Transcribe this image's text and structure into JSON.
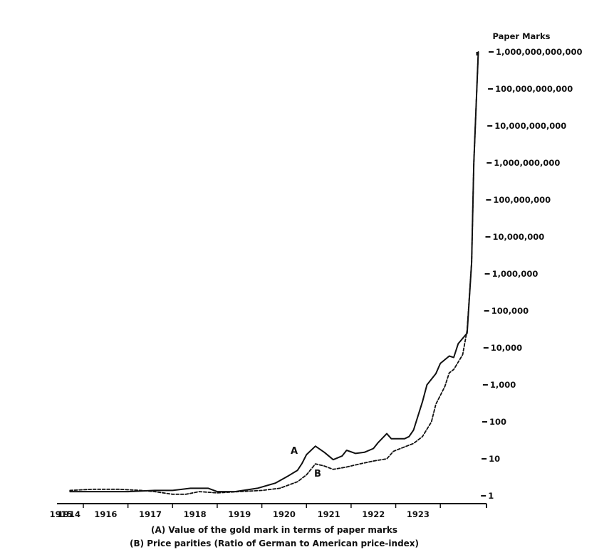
{
  "chart_data": {
    "type": "line",
    "title": "",
    "xlabel": "",
    "ylabel": "Paper Marks",
    "yscale": "log",
    "ylim": [
      1,
      1000000000000
    ],
    "xlim": [
      1914.7,
      1924.0
    ],
    "grid": false,
    "legend_position": "caption below chart",
    "x_tick_labels": [
      "1914",
      "1915",
      "1916",
      "1917",
      "1918",
      "1919",
      "1920",
      "1921",
      "1922",
      "1923"
    ],
    "y_tick_values": [
      1,
      10,
      100,
      1000,
      10000,
      100000,
      1000000,
      10000000,
      100000000,
      1000000000,
      10000000000,
      100000000000,
      1000000000000
    ],
    "y_tick_labels": [
      "1",
      "10",
      "100",
      "1,000",
      "10,000",
      "100,000",
      "1,000,000",
      "10,000,000",
      "100,000,000",
      "1,000,000,000",
      "10,000,000,000",
      "100,000,000,000",
      "1,000,000,000,000"
    ],
    "annotations": [
      {
        "text": "A",
        "x": 1919.6,
        "y": 20
      },
      {
        "text": "B",
        "x": 1919.9,
        "y": 5
      }
    ],
    "series": [
      {
        "name": "A",
        "label": "(A) Value of the gold mark in terms of paper marks",
        "style": "solid",
        "x": [
          1914.7,
          1915.2,
          1916.0,
          1916.6,
          1917.0,
          1917.4,
          1917.8,
          1918.0,
          1918.4,
          1918.9,
          1919.3,
          1919.6,
          1919.8,
          1919.9,
          1920.0,
          1920.2,
          1920.4,
          1920.6,
          1920.8,
          1920.9,
          1921.1,
          1921.3,
          1921.5,
          1921.6,
          1921.8,
          1921.9,
          1922.2,
          1922.3,
          1922.4,
          1922.6,
          1922.7,
          1922.9,
          1923.0,
          1923.2,
          1923.3,
          1923.4,
          1923.6,
          1923.7,
          1923.75,
          1923.85
        ],
        "values": [
          1.3,
          1.3,
          1.3,
          1.4,
          1.4,
          1.6,
          1.6,
          1.3,
          1.3,
          1.6,
          2.2,
          3.5,
          4.9,
          7.5,
          13,
          22,
          15,
          9.5,
          12,
          17,
          14,
          15,
          19,
          27,
          48,
          35,
          35,
          40,
          60,
          350,
          1000,
          2000,
          3800,
          6000,
          5500,
          13000,
          25000,
          2000000,
          1000000000,
          1000000000000
        ]
      },
      {
        "name": "B",
        "label": "(B) Price parities (Ratio of German to American price-index)",
        "style": "dashed",
        "x": [
          1914.7,
          1915.2,
          1915.8,
          1916.3,
          1916.6,
          1917.0,
          1917.3,
          1917.6,
          1918.0,
          1918.5,
          1919.0,
          1919.4,
          1919.8,
          1920.0,
          1920.2,
          1920.4,
          1920.6,
          1920.9,
          1921.2,
          1921.5,
          1921.8,
          1921.95,
          1922.2,
          1922.4,
          1922.6,
          1922.8,
          1922.9,
          1923.1,
          1923.2,
          1923.3,
          1923.5,
          1923.6,
          1923.7,
          1923.75,
          1923.85
        ],
        "values": [
          1.4,
          1.5,
          1.5,
          1.4,
          1.3,
          1.1,
          1.1,
          1.3,
          1.2,
          1.3,
          1.4,
          1.6,
          2.4,
          3.7,
          7.3,
          6.4,
          5.2,
          6.0,
          7.3,
          8.7,
          10,
          16,
          21,
          26,
          40,
          100,
          300,
          900,
          2100,
          2600,
          6500,
          30000,
          2000000,
          1000000000,
          1000000000000
        ]
      }
    ]
  },
  "axis": {
    "y_title": "Paper Marks"
  },
  "captions": {
    "a": "(A) Value of the gold mark in terms of paper marks",
    "b": "(B) Price parities (Ratio of German to American price-index)"
  },
  "colors": {
    "ink": "#111111",
    "background": "#ffffff"
  }
}
